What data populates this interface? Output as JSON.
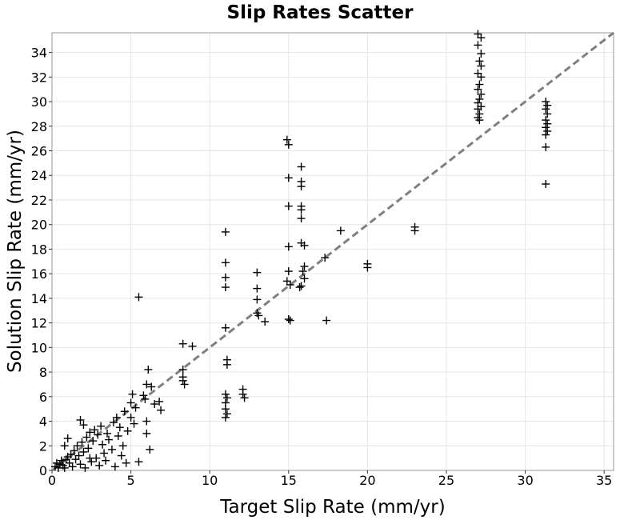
{
  "chart_data": {
    "type": "scatter",
    "title": "Slip Rates Scatter",
    "xlabel": "Target Slip Rate (mm/yr)",
    "ylabel": "Solution Slip Rate (mm/yr)",
    "xlim": [
      0,
      35.6
    ],
    "ylim": [
      0,
      35.6
    ],
    "x_ticks": [
      0,
      5,
      10,
      15,
      20,
      25,
      30,
      35
    ],
    "y_ticks": [
      0,
      2,
      4,
      6,
      8,
      10,
      12,
      14,
      16,
      18,
      20,
      22,
      24,
      26,
      28,
      30,
      32,
      34
    ],
    "grid": true,
    "marker": "plus",
    "marker_color": "#000000",
    "reference_line": {
      "style": "dashed",
      "color": "#808080",
      "from": [
        0,
        0
      ],
      "to": [
        35.6,
        35.6
      ]
    },
    "series": [
      {
        "points": [
          [
            0.2,
            0.3
          ],
          [
            0.3,
            0.6
          ],
          [
            0.4,
            0.2
          ],
          [
            0.5,
            0.5
          ],
          [
            0.6,
            0.8
          ],
          [
            0.7,
            0.4
          ],
          [
            0.8,
            0.2
          ],
          [
            0.9,
            0.9
          ],
          [
            1.0,
            1.1
          ],
          [
            1.1,
            0.6
          ],
          [
            1.2,
            1.3
          ],
          [
            1.3,
            0.3
          ],
          [
            1.4,
            1.6
          ],
          [
            1.5,
            0.9
          ],
          [
            1.6,
            2.0
          ],
          [
            1.7,
            1.2
          ],
          [
            1.8,
            0.5
          ],
          [
            1.9,
            2.3
          ],
          [
            2.0,
            1.5
          ],
          [
            2.1,
            0.2
          ],
          [
            2.2,
            2.7
          ],
          [
            2.3,
            1.8
          ],
          [
            2.4,
            3.1
          ],
          [
            2.5,
            0.7
          ],
          [
            2.6,
            2.4
          ],
          [
            2.7,
            3.3
          ],
          [
            2.8,
            1.0
          ],
          [
            2.9,
            2.9
          ],
          [
            3.0,
            0.4
          ],
          [
            3.1,
            3.6
          ],
          [
            3.2,
            2.1
          ],
          [
            3.3,
            1.4
          ],
          [
            3.5,
            3.0
          ],
          [
            3.6,
            2.5
          ],
          [
            3.8,
            1.7
          ],
          [
            3.9,
            3.9
          ],
          [
            4.0,
            0.3
          ],
          [
            4.1,
            4.3
          ],
          [
            4.2,
            2.8
          ],
          [
            4.3,
            3.5
          ],
          [
            4.5,
            2.0
          ],
          [
            4.6,
            4.8
          ],
          [
            4.8,
            3.2
          ],
          [
            5.0,
            5.5
          ],
          [
            5.0,
            4.3
          ],
          [
            5.1,
            6.2
          ],
          [
            5.2,
            3.8
          ],
          [
            5.3,
            5.1
          ],
          [
            5.5,
            14.1
          ],
          [
            5.5,
            0.7
          ],
          [
            5.8,
            6.1
          ],
          [
            5.9,
            5.8
          ],
          [
            6.0,
            7.0
          ],
          [
            6.0,
            4.0
          ],
          [
            6.0,
            3.0
          ],
          [
            6.1,
            8.2
          ],
          [
            6.2,
            1.7
          ],
          [
            6.3,
            6.8
          ],
          [
            6.5,
            5.4
          ],
          [
            6.8,
            5.6
          ],
          [
            6.9,
            4.9
          ],
          [
            1.8,
            4.1
          ],
          [
            2.0,
            3.7
          ],
          [
            0.8,
            2.0
          ],
          [
            1.0,
            2.6
          ],
          [
            2.4,
            1.0
          ],
          [
            3.4,
            0.8
          ],
          [
            4.4,
            1.2
          ],
          [
            4.7,
            0.6
          ],
          [
            8.3,
            8.2
          ],
          [
            8.3,
            7.6
          ],
          [
            8.3,
            7.3
          ],
          [
            8.4,
            7.0
          ],
          [
            8.3,
            10.3
          ],
          [
            8.9,
            10.1
          ],
          [
            11.0,
            19.4
          ],
          [
            11.0,
            16.9
          ],
          [
            11.0,
            15.7
          ],
          [
            11.0,
            14.9
          ],
          [
            11.0,
            11.6
          ],
          [
            11.1,
            9.0
          ],
          [
            11.1,
            8.6
          ],
          [
            11.0,
            6.2
          ],
          [
            11.1,
            5.9
          ],
          [
            11.0,
            5.5
          ],
          [
            11.0,
            5.0
          ],
          [
            11.1,
            4.6
          ],
          [
            11.0,
            4.3
          ],
          [
            12.1,
            6.6
          ],
          [
            12.1,
            6.2
          ],
          [
            12.2,
            5.9
          ],
          [
            13.0,
            16.1
          ],
          [
            13.0,
            14.8
          ],
          [
            13.0,
            13.9
          ],
          [
            13.0,
            12.8
          ],
          [
            13.1,
            12.6
          ],
          [
            13.5,
            12.1
          ],
          [
            14.9,
            26.9
          ],
          [
            15.0,
            26.5
          ],
          [
            15.0,
            23.8
          ],
          [
            15.0,
            21.5
          ],
          [
            15.0,
            18.2
          ],
          [
            15.0,
            16.2
          ],
          [
            14.9,
            15.4
          ],
          [
            15.1,
            15.1
          ],
          [
            15.0,
            12.3
          ],
          [
            15.1,
            12.2
          ],
          [
            15.8,
            24.7
          ],
          [
            15.8,
            23.5
          ],
          [
            15.8,
            23.1
          ],
          [
            15.8,
            21.5
          ],
          [
            15.8,
            21.2
          ],
          [
            15.8,
            20.5
          ],
          [
            15.8,
            18.5
          ],
          [
            16.0,
            18.3
          ],
          [
            16.0,
            16.6
          ],
          [
            15.9,
            16.2
          ],
          [
            16.0,
            15.6
          ],
          [
            15.8,
            15.0
          ],
          [
            15.7,
            14.9
          ],
          [
            17.3,
            17.3
          ],
          [
            17.4,
            12.2
          ],
          [
            18.3,
            19.5
          ],
          [
            20.0,
            16.8
          ],
          [
            20.0,
            16.5
          ],
          [
            23.0,
            19.8
          ],
          [
            23.0,
            19.5
          ],
          [
            27.0,
            35.5
          ],
          [
            27.2,
            35.2
          ],
          [
            27.0,
            34.6
          ],
          [
            27.2,
            33.9
          ],
          [
            27.1,
            33.3
          ],
          [
            27.2,
            32.9
          ],
          [
            27.0,
            32.3
          ],
          [
            27.2,
            32.0
          ],
          [
            27.1,
            31.4
          ],
          [
            27.0,
            31.0
          ],
          [
            27.2,
            30.6
          ],
          [
            27.1,
            30.2
          ],
          [
            27.0,
            29.9
          ],
          [
            27.2,
            29.6
          ],
          [
            27.0,
            29.4
          ],
          [
            27.1,
            29.0
          ],
          [
            27.0,
            28.7
          ],
          [
            27.1,
            28.5
          ],
          [
            31.3,
            30.0
          ],
          [
            31.4,
            29.7
          ],
          [
            31.3,
            29.4
          ],
          [
            31.4,
            29.0
          ],
          [
            31.3,
            28.5
          ],
          [
            31.4,
            28.2
          ],
          [
            31.3,
            27.9
          ],
          [
            31.4,
            27.6
          ],
          [
            31.3,
            27.3
          ],
          [
            31.3,
            26.3
          ],
          [
            31.3,
            23.3
          ]
        ]
      }
    ]
  }
}
